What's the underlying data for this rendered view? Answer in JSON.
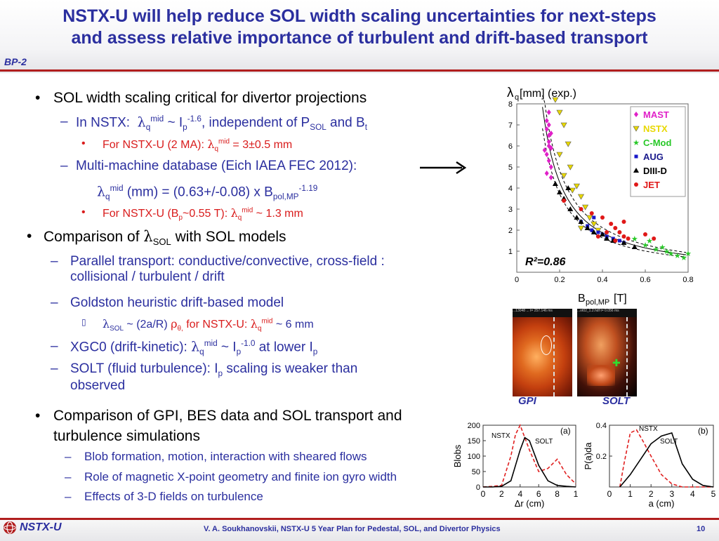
{
  "header": {
    "title_line1": "NSTX-U will help reduce SOL width scaling uncertainties for next-steps",
    "title_line2": "and assess relative importance of turbulent and drift-based transport",
    "tag": "BP-2"
  },
  "bullets": {
    "b1": "SOL width scaling critical for divertor projections",
    "b1_s1_pre": "In NSTX:",
    "b1_s1_lam": "λ",
    "b1_s1_q": "q",
    "b1_s1_mid": "mid",
    "b1_s1_mid2": " ~ I",
    "b1_s1_p": "p",
    "b1_s1_exp": "-1.6",
    "b1_s1_post": ", independent of P",
    "b1_s1_sol": "SOL",
    "b1_s1_and": " and B",
    "b1_s1_t": "t",
    "b1_s1_sub1_pre": "For NSTX-U (2 MA):",
    "b1_s1_sub1_q": "q",
    "b1_s1_sub1_mid": "mid",
    "b1_s1_sub1_val": " = 3±0.5 mm",
    "b1_s2": "Multi-machine database (Eich IAEA FEC 2012):",
    "b1_s2_formula_lam": "λ",
    "b1_s2_formula_q": "q",
    "b1_s2_formula_mid": "mid",
    "b1_s2_formula_body": " (mm) = (0.63+/-0.08) x B",
    "b1_s2_formula_sub": "pol,MP",
    "b1_s2_formula_exp": "-1.19",
    "b1_s2_sub1_pre": "For NSTX-U (B",
    "b1_s2_sub1_p": "p",
    "b1_s2_sub1_mid": "~0.55 T):",
    "b1_s2_sub1_q": "q",
    "b1_s2_sub1_mid2": "mid",
    "b1_s2_sub1_val": " ~ 1.3 mm",
    "b2_pre": "Comparison of",
    "b2_lam": "λ",
    "b2_sub": "SOL",
    "b2_post": " with SOL models",
    "b2_s1": "Parallel transport: conductive/convective, cross-field :",
    "b2_s1b": "collisional / turbulent / drift",
    "b2_s2": "Goldston heuristic drift-based model",
    "b2_s2_sub_lam": "λ",
    "b2_s2_sub_sol": "SOL",
    "b2_s2_sub_mid": " ~ (2a/R) ",
    "b2_s2_sub_rho": "ρ",
    "b2_s2_sub_theta": "θ,",
    "b2_s2_sub_for": " for NSTX-U: ",
    "b2_s2_sub_lam2": "λ",
    "b2_s2_sub_q": "q",
    "b2_s2_sub_mid2": "mid",
    "b2_s2_sub_val": " ~ 6 mm",
    "b2_s3_pre": "XGC0 (drift-kinetic):",
    "b2_s3_lam": "λ",
    "b2_s3_q": "q",
    "b2_s3_mid": "mid",
    "b2_s3_body": " ~ I",
    "b2_s3_p": "p",
    "b2_s3_exp": "-1.0",
    "b2_s3_post": " at lower I",
    "b2_s3_p2": "p",
    "b2_s4_pre": "SOLT (fluid turbulence): I",
    "b2_s4_p": "p",
    "b2_s4_post": " scaling is weaker than",
    "b2_s4b": "observed",
    "b3": "Comparison of GPI, BES data and SOL transport and",
    "b3b": "turbulence simulations",
    "b3_s1": "Blob formation, motion, interaction with sheared flows",
    "b3_s2": "Role of magnetic X-point geometry and finite ion gyro width",
    "b3_s3": "Effects of 3-D fields on turbulence"
  },
  "figures": {
    "gpi_label": "GPI",
    "solt_label": "SOLT",
    "gpi_header": "...13048 ... t= 257.146 ms",
    "solt_header": "...ot02_1.2.hdf t= 0.056 ms"
  },
  "chart_data": [
    {
      "type": "scatter",
      "title": "λq[mm] (exp.)",
      "xlabel": "Bpol,MP [T]",
      "ylabel": "λq[mm] (exp.)",
      "xlim": [
        0,
        0.8
      ],
      "ylim": [
        0,
        8
      ],
      "xticks": [
        "0",
        "0.2",
        "0.4",
        "0.6",
        "0.8"
      ],
      "yticks": [
        "1",
        "2",
        "3",
        "4",
        "5",
        "6",
        "7",
        "8"
      ],
      "annotation": "R²=0.86",
      "legend": [
        "MAST",
        "NSTX",
        "C-Mod",
        "AUG",
        "DIII-D",
        "JET"
      ],
      "colors": {
        "MAST": "#e020c8",
        "NSTX": "#e8d800",
        "C-Mod": "#28c828",
        "AUG": "#1818c8",
        "DIII-D": "#000000",
        "JET": "#e01818"
      },
      "series": [
        {
          "name": "MAST",
          "x": [
            0.14,
            0.14,
            0.15,
            0.15,
            0.16,
            0.14,
            0.15,
            0.16,
            0.15,
            0.14,
            0.16,
            0.15,
            0.13,
            0.16,
            0.15
          ],
          "y": [
            7.2,
            6.8,
            6.5,
            6.2,
            5.9,
            5.6,
            5.3,
            5.0,
            7.6,
            4.7,
            4.5,
            6.0,
            5.8,
            6.6,
            7.0
          ]
        },
        {
          "name": "NSTX",
          "x": [
            0.18,
            0.2,
            0.22,
            0.24,
            0.2,
            0.25,
            0.28,
            0.3,
            0.32,
            0.34,
            0.36,
            0.22,
            0.26,
            0.3,
            0.38
          ],
          "y": [
            8.2,
            7.6,
            7.0,
            6.1,
            5.6,
            5.0,
            4.1,
            3.6,
            3.1,
            2.6,
            2.3,
            4.6,
            3.9,
            2.1,
            2.0
          ]
        },
        {
          "name": "C-Mod",
          "x": [
            0.55,
            0.6,
            0.65,
            0.7,
            0.72,
            0.75,
            0.78,
            0.8,
            0.68,
            0.62
          ],
          "y": [
            1.6,
            1.3,
            1.1,
            1.0,
            0.9,
            0.8,
            0.7,
            0.9,
            1.2,
            1.5
          ]
        },
        {
          "name": "AUG",
          "x": [
            0.3,
            0.33,
            0.35,
            0.38,
            0.4,
            0.42,
            0.45,
            0.48,
            0.5,
            0.36
          ],
          "y": [
            2.4,
            2.2,
            2.0,
            1.9,
            1.8,
            1.7,
            1.6,
            1.5,
            1.4,
            2.6
          ]
        },
        {
          "name": "DIII-D",
          "x": [
            0.18,
            0.2,
            0.22,
            0.25,
            0.28,
            0.3,
            0.33,
            0.36,
            0.4,
            0.42,
            0.45,
            0.5,
            0.55,
            0.24
          ],
          "y": [
            4.2,
            3.8,
            3.5,
            3.0,
            2.6,
            2.4,
            2.1,
            1.9,
            1.8,
            1.6,
            1.5,
            1.4,
            1.2,
            4.0
          ]
        },
        {
          "name": "JET",
          "x": [
            0.22,
            0.3,
            0.35,
            0.4,
            0.44,
            0.46,
            0.48,
            0.5,
            0.52,
            0.42,
            0.38,
            0.46,
            0.64,
            0.6,
            0.5
          ],
          "y": [
            3.4,
            3.0,
            2.8,
            2.6,
            2.3,
            2.1,
            1.9,
            1.7,
            1.6,
            1.9,
            1.7,
            1.5,
            1.6,
            1.8,
            2.4
          ]
        }
      ],
      "fit_curve_formula": "0.63 * x^-1.19"
    },
    {
      "type": "line",
      "label": "(a)",
      "xlabel": "Δr (cm)",
      "ylabel": "Blobs",
      "xlim": [
        0,
        10
      ],
      "ylim": [
        0,
        200
      ],
      "xticks": [
        "0",
        "2",
        "4",
        "6",
        "8",
        "1"
      ],
      "yticks": [
        "0",
        "50",
        "100",
        "150",
        "200"
      ],
      "series": [
        {
          "name": "NSTX",
          "style": "dashed",
          "color": "#e02020",
          "x": [
            0,
            1,
            2,
            3,
            3.5,
            4,
            5,
            6,
            7,
            8,
            9,
            10
          ],
          "y": [
            0,
            2,
            5,
            100,
            170,
            200,
            120,
            50,
            60,
            90,
            40,
            10
          ]
        },
        {
          "name": "SOLT",
          "style": "solid",
          "color": "#000000",
          "x": [
            0,
            1,
            2,
            3,
            4,
            4.5,
            5,
            6,
            7,
            8,
            9,
            10
          ],
          "y": [
            0,
            0,
            2,
            20,
            120,
            160,
            150,
            70,
            20,
            5,
            2,
            0
          ]
        }
      ]
    },
    {
      "type": "line",
      "label": "(b)",
      "xlabel": "a (cm)",
      "ylabel": "P(a)da",
      "xlim": [
        0,
        5
      ],
      "ylim": [
        0,
        0.4
      ],
      "xticks": [
        "0",
        "1",
        "2",
        "3",
        "4",
        "5"
      ],
      "yticks": [
        "0.2",
        "0.4"
      ],
      "series": [
        {
          "name": "NSTX",
          "style": "dashed",
          "color": "#e02020",
          "x": [
            0.5,
            0.7,
            1.0,
            1.3,
            1.6,
            2.0,
            2.5,
            3.0,
            3.5,
            4.0,
            5.0
          ],
          "y": [
            0.0,
            0.15,
            0.35,
            0.37,
            0.3,
            0.2,
            0.08,
            0.02,
            0.0,
            0.0,
            0.0
          ]
        },
        {
          "name": "SOLT",
          "style": "solid",
          "color": "#000000",
          "x": [
            0.5,
            1.0,
            1.5,
            2.0,
            2.5,
            3.0,
            3.5,
            4.0,
            4.5,
            5.0
          ],
          "y": [
            0.0,
            0.08,
            0.18,
            0.28,
            0.33,
            0.35,
            0.15,
            0.05,
            0.01,
            0.0
          ]
        }
      ]
    }
  ],
  "footer": {
    "logo_text": "NSTX-U",
    "text": "V. A. Soukhanovskii, NSTX-U 5 Year Plan for Pedestal, SOL, and Divertor Physics",
    "page": "10"
  }
}
